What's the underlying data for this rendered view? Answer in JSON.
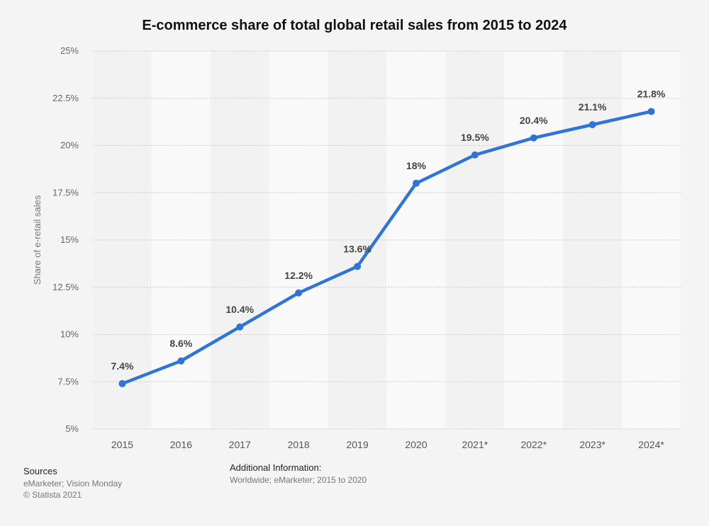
{
  "chart_data": {
    "type": "line",
    "title": "E-commerce share of total global retail sales from 2015 to 2024",
    "xlabel": "",
    "ylabel": "Share of e-retail sales",
    "categories": [
      "2015",
      "2016",
      "2017",
      "2018",
      "2019",
      "2020",
      "2021*",
      "2022*",
      "2023*",
      "2024*"
    ],
    "series": [
      {
        "values": [
          7.4,
          8.6,
          10.4,
          12.2,
          13.6,
          18,
          19.5,
          20.4,
          21.1,
          21.8
        ]
      }
    ],
    "data_labels": [
      "7.4%",
      "8.6%",
      "10.4%",
      "12.2%",
      "13.6%",
      "18%",
      "19.5%",
      "20.4%",
      "21.1%",
      "21.8%"
    ],
    "ylim": [
      5,
      25
    ],
    "yticks": [
      5,
      7.5,
      10,
      12.5,
      15,
      17.5,
      20,
      22.5,
      25
    ],
    "ytick_labels": [
      "5%",
      "7.5%",
      "10%",
      "12.5%",
      "15%",
      "17.5%",
      "20%",
      "22.5%",
      "25%"
    ],
    "grid": true,
    "line_color": "#2f74d9"
  },
  "footer": {
    "sources_heading": "Sources",
    "sources_line1": "eMarketer; Vision Monday",
    "sources_line2": "© Statista 2021",
    "additional_heading": "Additional Information:",
    "additional_line": "Worldwide; eMarketer; 2015 to 2020"
  }
}
